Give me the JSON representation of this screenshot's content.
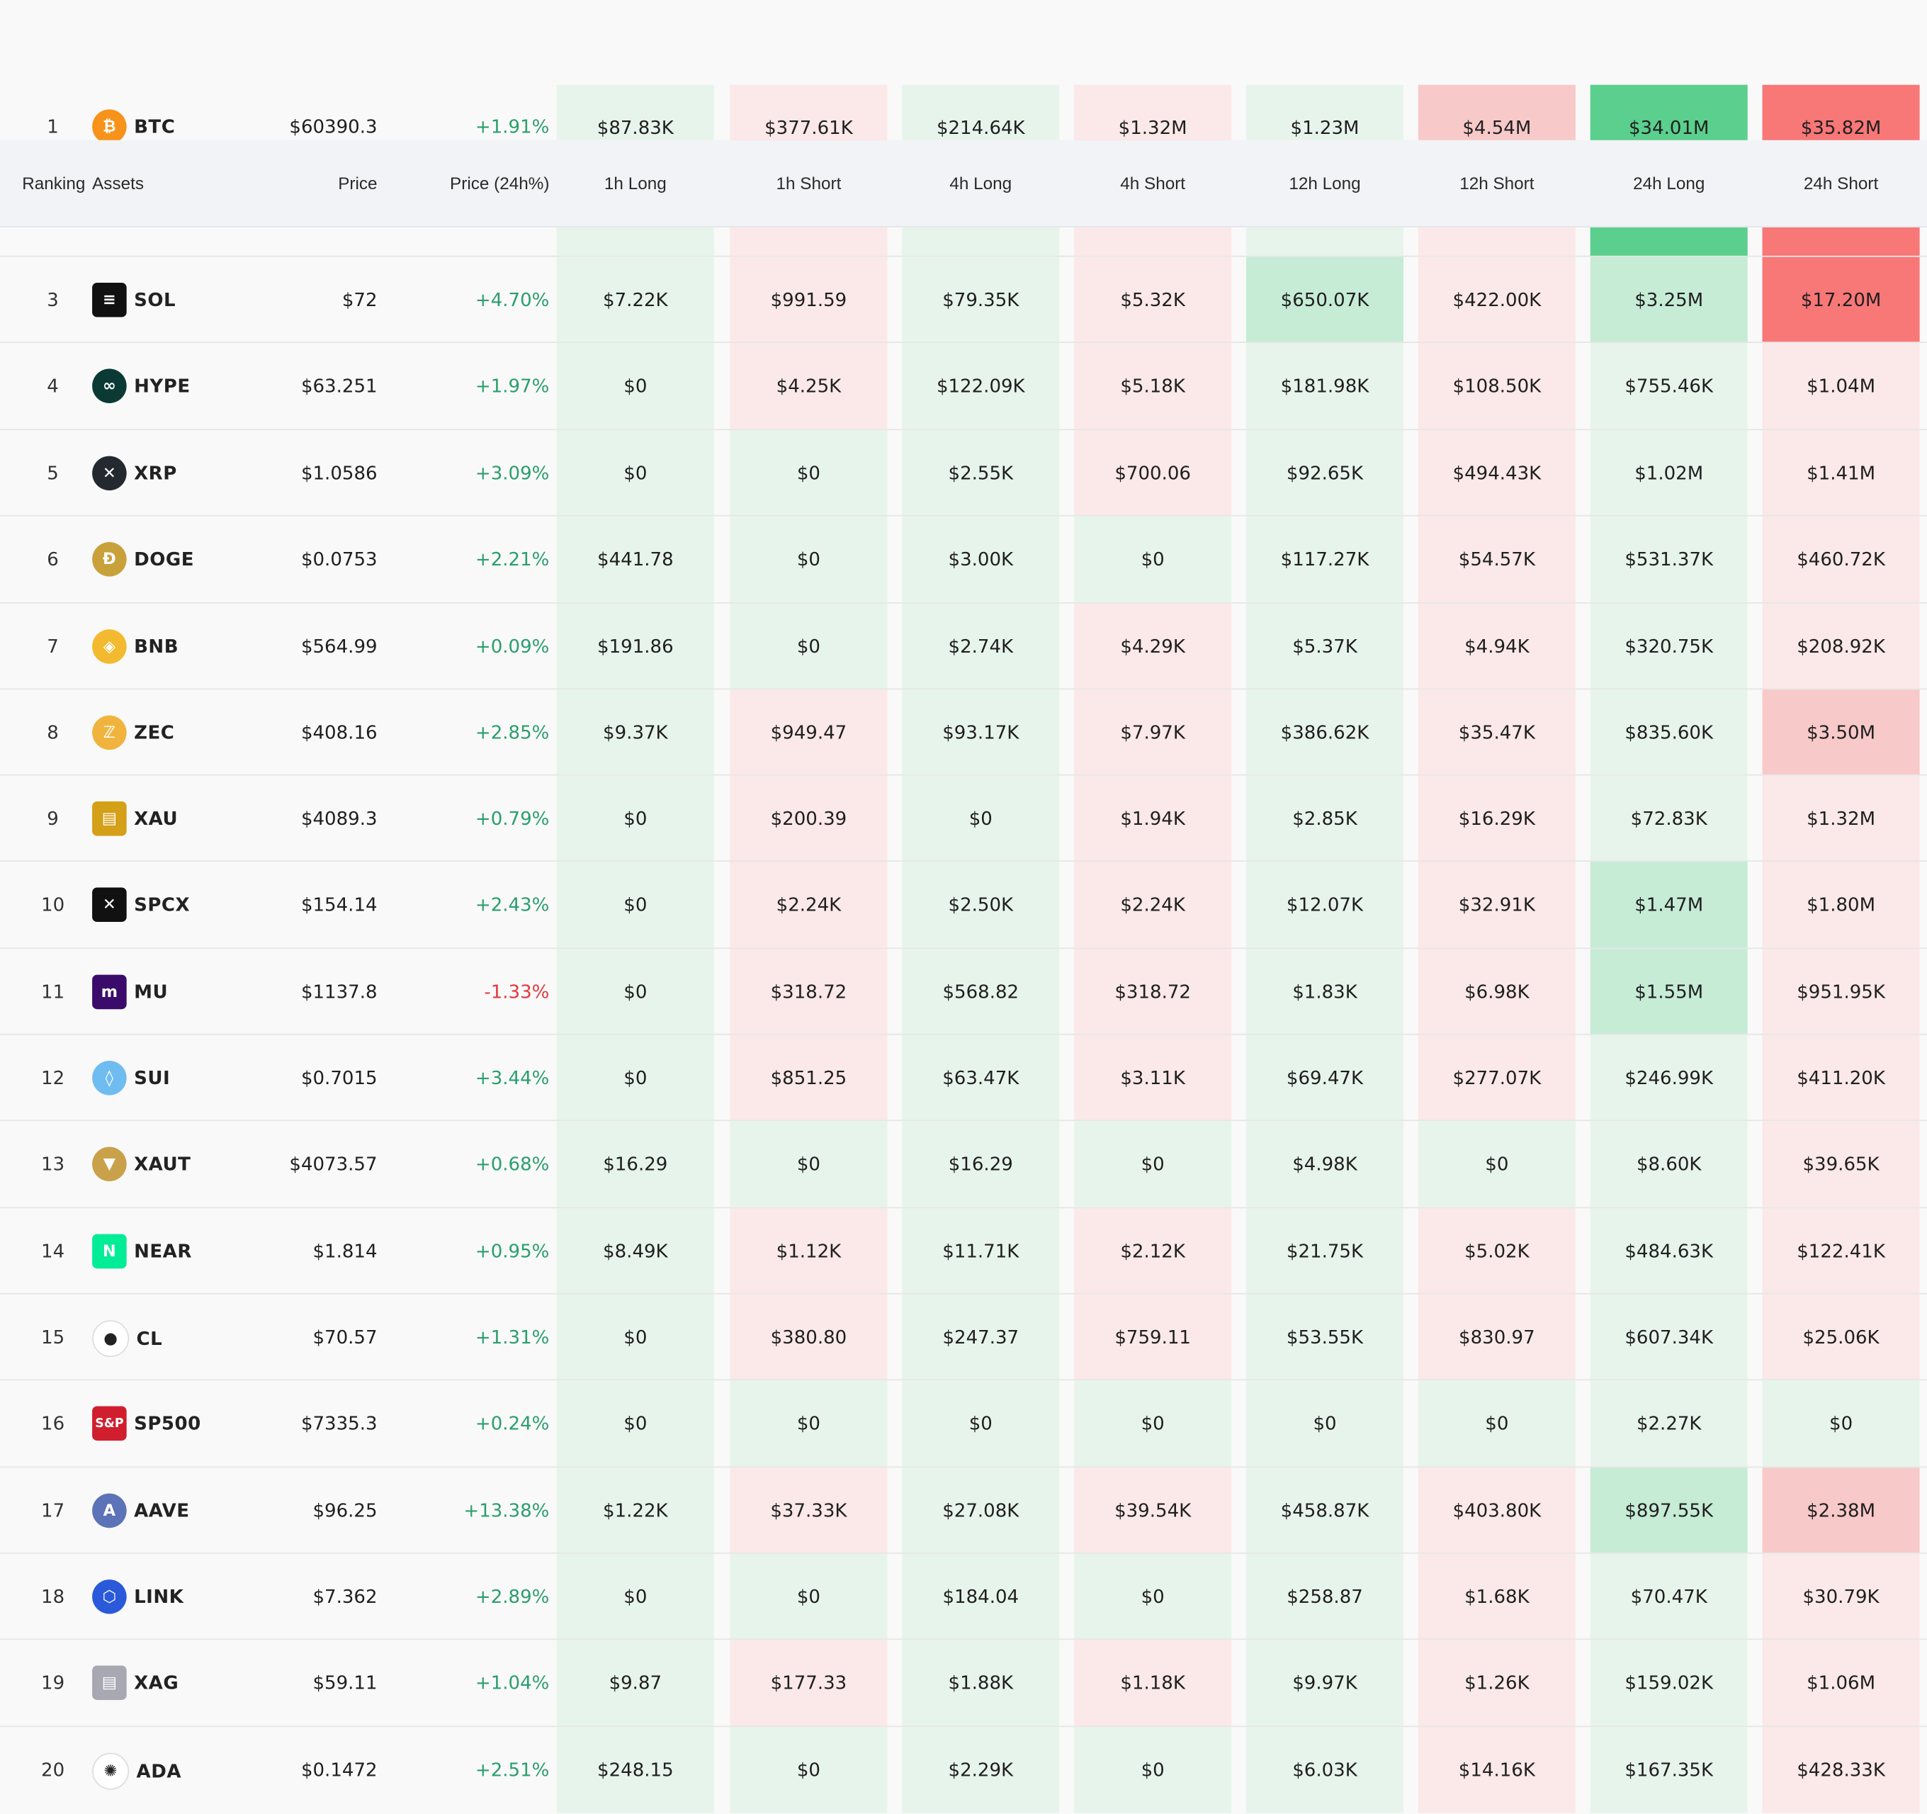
{
  "header": {
    "ranking": "Ranking",
    "assets": "Assets",
    "price": "Price",
    "change": "Price (24h%)",
    "cols": [
      "1h Long",
      "1h Short",
      "4h Long",
      "4h Short",
      "12h Long",
      "12h Short",
      "24h Long",
      "24h Short"
    ]
  },
  "colors": {
    "long_light": "#e7f4ec",
    "long_mid": "#c6ecd6",
    "long_strong": "#5bcf8d",
    "short_light": "#fbe8e8",
    "short_mid": "#f8c9c9",
    "short_strong": "#f87777",
    "positive": "#2b9e6d",
    "negative": "#e0393e"
  },
  "rows": [
    {
      "rank": "1",
      "symbol": "BTC",
      "icon": "bitcoin-icon",
      "price": "$60390.3",
      "change": "+1.91%",
      "values": [
        "$87.83K",
        "$377.61K",
        "$214.64K",
        "$1.32M",
        "$1.23M",
        "$4.54M",
        "$34.01M",
        "$35.82M"
      ]
    },
    {
      "rank": "3",
      "symbol": "SOL",
      "icon": "solana-icon",
      "price": "$72",
      "change": "+4.70%",
      "values": [
        "$7.22K",
        "$991.59",
        "$79.35K",
        "$5.32K",
        "$650.07K",
        "$422.00K",
        "$3.25M",
        "$17.20M"
      ]
    },
    {
      "rank": "4",
      "symbol": "HYPE",
      "icon": "hyperliquid-icon",
      "price": "$63.251",
      "change": "+1.97%",
      "values": [
        "$0",
        "$4.25K",
        "$122.09K",
        "$5.18K",
        "$181.98K",
        "$108.50K",
        "$755.46K",
        "$1.04M"
      ]
    },
    {
      "rank": "5",
      "symbol": "XRP",
      "icon": "xrp-icon",
      "price": "$1.0586",
      "change": "+3.09%",
      "values": [
        "$0",
        "$0",
        "$2.55K",
        "$700.06",
        "$92.65K",
        "$494.43K",
        "$1.02M",
        "$1.41M"
      ]
    },
    {
      "rank": "6",
      "symbol": "DOGE",
      "icon": "dogecoin-icon",
      "price": "$0.0753",
      "change": "+2.21%",
      "values": [
        "$441.78",
        "$0",
        "$3.00K",
        "$0",
        "$117.27K",
        "$54.57K",
        "$531.37K",
        "$460.72K"
      ]
    },
    {
      "rank": "7",
      "symbol": "BNB",
      "icon": "bnb-icon",
      "price": "$564.99",
      "change": "+0.09%",
      "values": [
        "$191.86",
        "$0",
        "$2.74K",
        "$4.29K",
        "$5.37K",
        "$4.94K",
        "$320.75K",
        "$208.92K"
      ]
    },
    {
      "rank": "8",
      "symbol": "ZEC",
      "icon": "zcash-icon",
      "price": "$408.16",
      "change": "+2.85%",
      "values": [
        "$9.37K",
        "$949.47",
        "$93.17K",
        "$7.97K",
        "$386.62K",
        "$35.47K",
        "$835.60K",
        "$3.50M"
      ]
    },
    {
      "rank": "9",
      "symbol": "XAU",
      "icon": "gold-icon",
      "price": "$4089.3",
      "change": "+0.79%",
      "values": [
        "$0",
        "$200.39",
        "$0",
        "$1.94K",
        "$2.85K",
        "$16.29K",
        "$72.83K",
        "$1.32M"
      ]
    },
    {
      "rank": "10",
      "symbol": "SPCX",
      "icon": "spacex-icon",
      "price": "$154.14",
      "change": "+2.43%",
      "values": [
        "$0",
        "$2.24K",
        "$2.50K",
        "$2.24K",
        "$12.07K",
        "$32.91K",
        "$1.47M",
        "$1.80M"
      ]
    },
    {
      "rank": "11",
      "symbol": "MU",
      "icon": "micron-icon",
      "price": "$1137.8",
      "change": "-1.33%",
      "values": [
        "$0",
        "$318.72",
        "$568.82",
        "$318.72",
        "$1.83K",
        "$6.98K",
        "$1.55M",
        "$951.95K"
      ]
    },
    {
      "rank": "12",
      "symbol": "SUI",
      "icon": "sui-icon",
      "price": "$0.7015",
      "change": "+3.44%",
      "values": [
        "$0",
        "$851.25",
        "$63.47K",
        "$3.11K",
        "$69.47K",
        "$277.07K",
        "$246.99K",
        "$411.20K"
      ]
    },
    {
      "rank": "13",
      "symbol": "XAUT",
      "icon": "tether-gold-icon",
      "price": "$4073.57",
      "change": "+0.68%",
      "values": [
        "$16.29",
        "$0",
        "$16.29",
        "$0",
        "$4.98K",
        "$0",
        "$8.60K",
        "$39.65K"
      ]
    },
    {
      "rank": "14",
      "symbol": "NEAR",
      "icon": "near-icon",
      "price": "$1.814",
      "change": "+0.95%",
      "values": [
        "$8.49K",
        "$1.12K",
        "$11.71K",
        "$2.12K",
        "$21.75K",
        "$5.02K",
        "$484.63K",
        "$122.41K"
      ]
    },
    {
      "rank": "15",
      "symbol": "CL",
      "icon": "oil-drop-icon",
      "price": "$70.57",
      "change": "+1.31%",
      "values": [
        "$0",
        "$380.80",
        "$247.37",
        "$759.11",
        "$53.55K",
        "$830.97",
        "$607.34K",
        "$25.06K"
      ]
    },
    {
      "rank": "16",
      "symbol": "SP500",
      "icon": "sp500-icon",
      "price": "$7335.3",
      "change": "+0.24%",
      "values": [
        "$0",
        "$0",
        "$0",
        "$0",
        "$0",
        "$0",
        "$2.27K",
        "$0"
      ]
    },
    {
      "rank": "17",
      "symbol": "AAVE",
      "icon": "aave-icon",
      "price": "$96.25",
      "change": "+13.38%",
      "values": [
        "$1.22K",
        "$37.33K",
        "$27.08K",
        "$39.54K",
        "$458.87K",
        "$403.80K",
        "$897.55K",
        "$2.38M"
      ]
    },
    {
      "rank": "18",
      "symbol": "LINK",
      "icon": "chainlink-icon",
      "price": "$7.362",
      "change": "+2.89%",
      "values": [
        "$0",
        "$0",
        "$184.04",
        "$0",
        "$258.87",
        "$1.68K",
        "$70.47K",
        "$30.79K"
      ]
    },
    {
      "rank": "19",
      "symbol": "XAG",
      "icon": "silver-icon",
      "price": "$59.11",
      "change": "+1.04%",
      "values": [
        "$9.87",
        "$177.33",
        "$1.88K",
        "$1.18K",
        "$9.97K",
        "$1.26K",
        "$159.02K",
        "$1.06M"
      ]
    },
    {
      "rank": "20",
      "symbol": "ADA",
      "icon": "cardano-icon",
      "price": "$0.1472",
      "change": "+2.51%",
      "values": [
        "$248.15",
        "$0",
        "$2.29K",
        "$0",
        "$6.03K",
        "$14.16K",
        "$167.35K",
        "$428.33K"
      ]
    }
  ],
  "shades": [
    [
      "l",
      "s",
      "l",
      "s",
      "l",
      "s2",
      "l3",
      "s3"
    ],
    [
      "l",
      "s",
      "l",
      "s",
      "l2",
      "s",
      "l2",
      "s3"
    ],
    [
      "l",
      "s",
      "l",
      "s",
      "l",
      "s",
      "l",
      "s"
    ],
    [
      "l",
      "l",
      "l",
      "s",
      "l",
      "s",
      "l",
      "s"
    ],
    [
      "l",
      "l",
      "l",
      "l",
      "l",
      "s",
      "l",
      "s"
    ],
    [
      "l",
      "l",
      "l",
      "s",
      "l",
      "s",
      "l",
      "s"
    ],
    [
      "l",
      "s",
      "l",
      "s",
      "l",
      "s",
      "l",
      "s2"
    ],
    [
      "l",
      "s",
      "l",
      "s",
      "l",
      "s",
      "l",
      "s"
    ],
    [
      "l",
      "s",
      "l",
      "s",
      "l",
      "s",
      "l2",
      "s"
    ],
    [
      "l",
      "s",
      "l",
      "s",
      "l",
      "s",
      "l2",
      "s"
    ],
    [
      "l",
      "s",
      "l",
      "s",
      "l",
      "s",
      "l",
      "s"
    ],
    [
      "l",
      "l",
      "l",
      "l",
      "l",
      "l",
      "l",
      "s"
    ],
    [
      "l",
      "s",
      "l",
      "s",
      "l",
      "s",
      "l",
      "s"
    ],
    [
      "l",
      "s",
      "l",
      "s",
      "l",
      "s",
      "l",
      "s"
    ],
    [
      "l",
      "l",
      "l",
      "l",
      "l",
      "l",
      "l",
      "l"
    ],
    [
      "l",
      "s",
      "l",
      "s",
      "l",
      "s",
      "l2",
      "s2"
    ],
    [
      "l",
      "l",
      "l",
      "l",
      "l",
      "s",
      "l",
      "s"
    ],
    [
      "l",
      "s",
      "l",
      "s",
      "l",
      "s",
      "l",
      "s"
    ],
    [
      "l",
      "l",
      "l",
      "l",
      "l",
      "s",
      "l",
      "s"
    ]
  ]
}
